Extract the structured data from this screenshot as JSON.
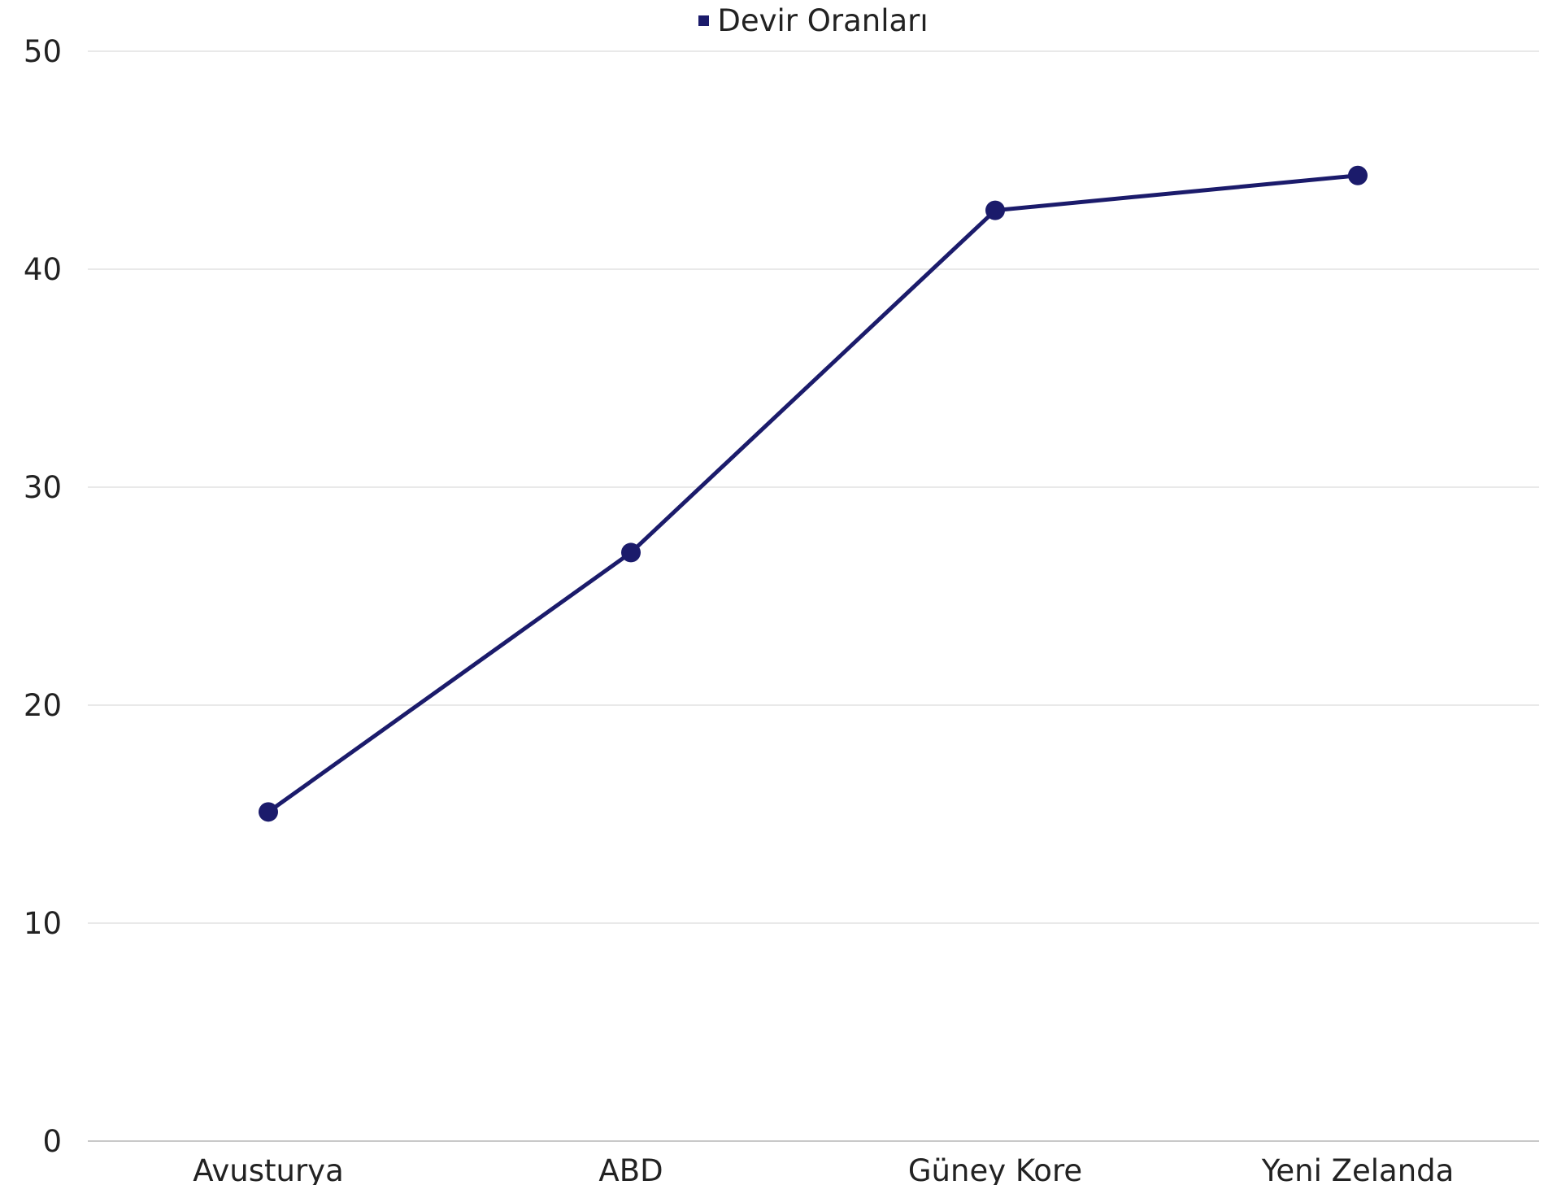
{
  "chart_data": {
    "type": "line",
    "categories": [
      "Avusturya",
      "ABD",
      "Güney Kore",
      "Yeni Zelanda"
    ],
    "series": [
      {
        "name": "Devir Oranları",
        "values": [
          15.1,
          27,
          42.7,
          44.3
        ],
        "color": "#1b1b6b"
      }
    ],
    "ylim": [
      0,
      50
    ],
    "yticks": [
      0,
      10,
      20,
      30,
      40,
      50
    ],
    "ytick_labels": [
      "0",
      "10",
      "20",
      "30",
      "40",
      "50"
    ],
    "grid": true,
    "legend_position": "top-center",
    "gridline_color": "#e2e2e2",
    "axis_line_color": "#c8c8c8"
  }
}
